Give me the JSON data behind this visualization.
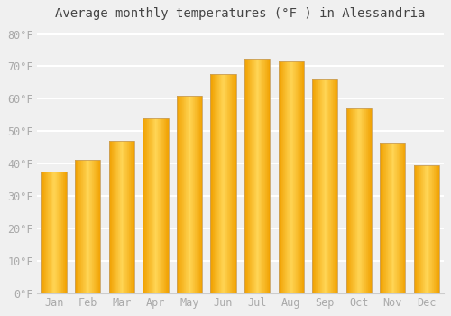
{
  "months": [
    "Jan",
    "Feb",
    "Mar",
    "Apr",
    "May",
    "Jun",
    "Jul",
    "Aug",
    "Sep",
    "Oct",
    "Nov",
    "Dec"
  ],
  "values": [
    37.5,
    41.0,
    47.0,
    54.0,
    61.0,
    67.5,
    72.5,
    71.5,
    66.0,
    57.0,
    46.5,
    39.5
  ],
  "bar_color_center": "#FFD060",
  "bar_color_edge": "#F5A000",
  "bar_border_color": "#C8A060",
  "title": "Average monthly temperatures (°F ) in Alessandria",
  "ylim": [
    0,
    82
  ],
  "yticks": [
    0,
    10,
    20,
    30,
    40,
    50,
    60,
    70,
    80
  ],
  "background_color": "#f0f0f0",
  "plot_bg_color": "#f0f0f0",
  "grid_color": "#ffffff",
  "title_fontsize": 10,
  "tick_label_color": "#aaaaaa",
  "tick_fontsize": 8.5,
  "bar_width": 0.75
}
